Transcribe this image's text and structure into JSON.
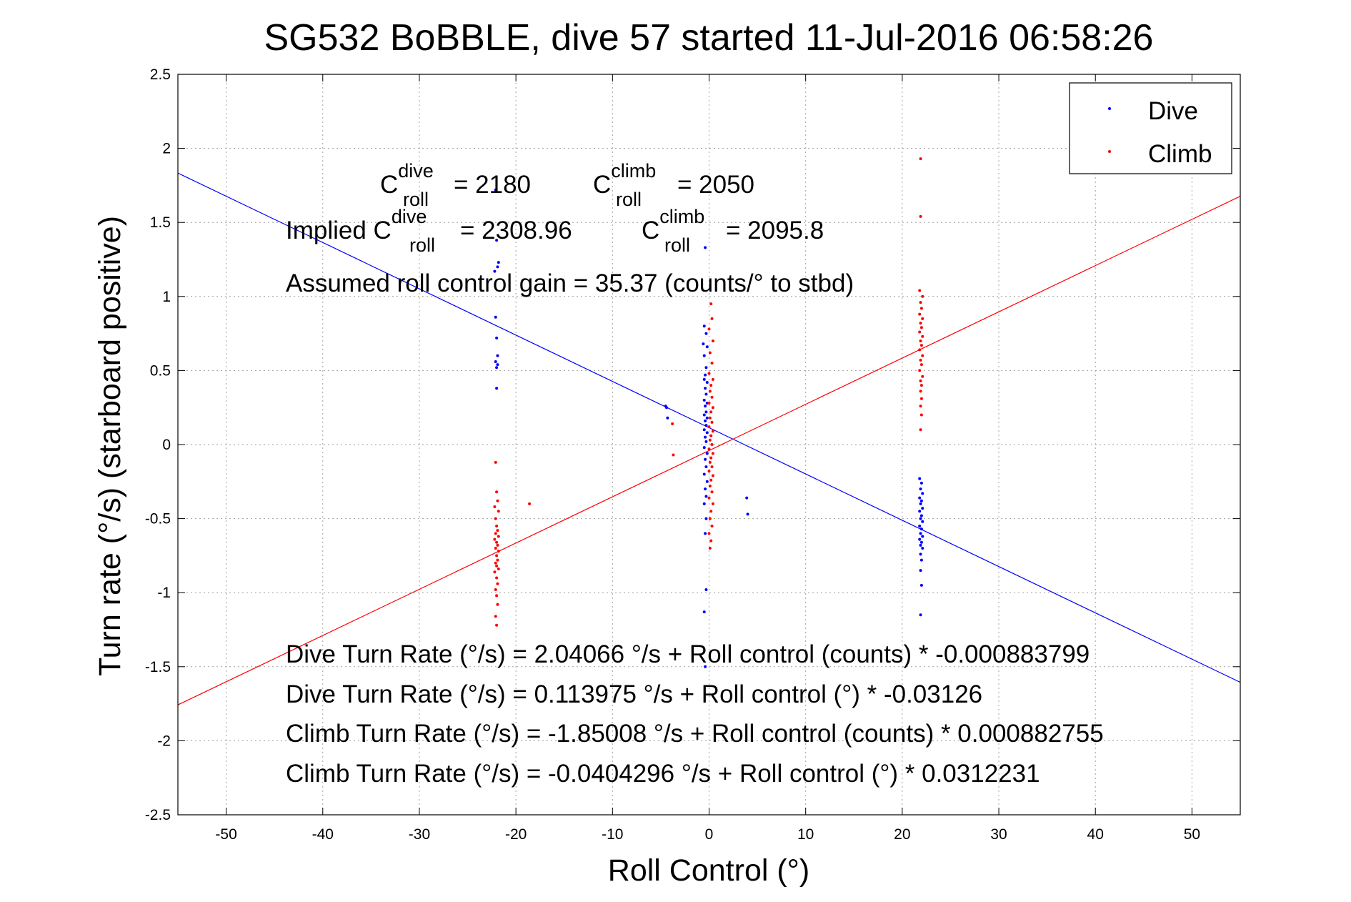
{
  "chart_data": {
    "type": "scatter",
    "title": "SG532 BoBBLE, dive 57 started 11-Jul-2016 06:58:26",
    "xlabel": "Roll Control (°)",
    "ylabel": "Turn rate (°/s)  (starboard positive)",
    "xlim": [
      -55,
      55
    ],
    "ylim": [
      -2.5,
      2.5
    ],
    "xticks": [
      -50,
      -40,
      -30,
      -20,
      -10,
      0,
      10,
      20,
      30,
      40,
      50
    ],
    "yticks": [
      -2.5,
      -2,
      -1.5,
      -1,
      -0.5,
      0,
      0.5,
      1,
      1.5,
      2,
      2.5
    ],
    "grid": true,
    "legend_position": "top-right",
    "colors": {
      "dive": "#0000ff",
      "climb": "#ff0000"
    },
    "series": [
      {
        "name": "Dive",
        "color": "#0000ff",
        "points": [
          [
            -22.1,
            1.72
          ],
          [
            -22.0,
            1.38
          ],
          [
            -21.9,
            1.2
          ],
          [
            -22.2,
            1.17
          ],
          [
            -21.8,
            1.23
          ],
          [
            -22.1,
            0.86
          ],
          [
            -22.0,
            0.72
          ],
          [
            -21.9,
            0.6
          ],
          [
            -22.1,
            0.56
          ],
          [
            -22.0,
            0.52
          ],
          [
            -21.9,
            0.54
          ],
          [
            -22.0,
            0.38
          ],
          [
            -4.5,
            0.26
          ],
          [
            -4.4,
            0.25
          ],
          [
            -4.3,
            0.18
          ],
          [
            -0.4,
            1.33
          ],
          [
            -0.5,
            0.8
          ],
          [
            -0.3,
            0.75
          ],
          [
            -0.6,
            0.68
          ],
          [
            -0.2,
            0.66
          ],
          [
            -0.5,
            0.6
          ],
          [
            -0.3,
            0.52
          ],
          [
            -0.4,
            0.47
          ],
          [
            -0.5,
            0.44
          ],
          [
            -0.2,
            0.42
          ],
          [
            -0.4,
            0.38
          ],
          [
            -0.3,
            0.34
          ],
          [
            -0.5,
            0.3
          ],
          [
            -0.2,
            0.28
          ],
          [
            -0.4,
            0.26
          ],
          [
            -0.3,
            0.22
          ],
          [
            -0.5,
            0.2
          ],
          [
            -0.2,
            0.18
          ],
          [
            -0.4,
            0.16
          ],
          [
            -0.3,
            0.13
          ],
          [
            -0.5,
            0.1
          ],
          [
            -0.2,
            0.08
          ],
          [
            -0.4,
            0.05
          ],
          [
            -0.3,
            0.02
          ],
          [
            -0.5,
            -0.02
          ],
          [
            -0.2,
            -0.06
          ],
          [
            -0.4,
            -0.1
          ],
          [
            -0.3,
            -0.15
          ],
          [
            -0.5,
            -0.2
          ],
          [
            -0.2,
            -0.25
          ],
          [
            -0.4,
            -0.3
          ],
          [
            -0.3,
            -0.35
          ],
          [
            -0.5,
            -0.4
          ],
          [
            -0.3,
            -0.5
          ],
          [
            -0.4,
            -0.6
          ],
          [
            -0.3,
            -0.98
          ],
          [
            -0.5,
            -1.13
          ],
          [
            -0.4,
            -1.5
          ],
          [
            3.9,
            -0.36
          ],
          [
            4.0,
            -0.47
          ],
          [
            21.8,
            -0.23
          ],
          [
            22.0,
            -0.26
          ],
          [
            21.9,
            -0.3
          ],
          [
            22.1,
            -0.33
          ],
          [
            21.8,
            -0.36
          ],
          [
            22.0,
            -0.38
          ],
          [
            21.9,
            -0.4
          ],
          [
            22.1,
            -0.43
          ],
          [
            21.8,
            -0.45
          ],
          [
            22.0,
            -0.48
          ],
          [
            21.9,
            -0.5
          ],
          [
            22.1,
            -0.52
          ],
          [
            21.8,
            -0.55
          ],
          [
            22.0,
            -0.57
          ],
          [
            21.9,
            -0.6
          ],
          [
            22.1,
            -0.62
          ],
          [
            21.8,
            -0.64
          ],
          [
            22.0,
            -0.66
          ],
          [
            21.9,
            -0.68
          ],
          [
            22.1,
            -0.7
          ],
          [
            21.9,
            -0.74
          ],
          [
            22.0,
            -0.78
          ],
          [
            21.9,
            -0.85
          ],
          [
            22.0,
            -0.95
          ],
          [
            21.9,
            -1.15
          ]
        ]
      },
      {
        "name": "Climb",
        "color": "#ff0000",
        "points": [
          [
            -22.1,
            -0.12
          ],
          [
            -22.0,
            -0.32
          ],
          [
            -21.9,
            -0.38
          ],
          [
            -22.2,
            -0.42
          ],
          [
            -21.8,
            -0.45
          ],
          [
            -22.1,
            -0.5
          ],
          [
            -22.0,
            -0.55
          ],
          [
            -21.9,
            -0.58
          ],
          [
            -22.1,
            -0.6
          ],
          [
            -21.8,
            -0.62
          ],
          [
            -22.2,
            -0.64
          ],
          [
            -22.0,
            -0.66
          ],
          [
            -21.9,
            -0.68
          ],
          [
            -22.1,
            -0.7
          ],
          [
            -21.8,
            -0.72
          ],
          [
            -22.0,
            -0.75
          ],
          [
            -21.9,
            -0.78
          ],
          [
            -22.1,
            -0.8
          ],
          [
            -22.0,
            -0.82
          ],
          [
            -21.8,
            -0.84
          ],
          [
            -22.2,
            -0.86
          ],
          [
            -22.0,
            -0.9
          ],
          [
            -21.9,
            -0.94
          ],
          [
            -22.1,
            -0.98
          ],
          [
            -22.0,
            -1.02
          ],
          [
            -21.9,
            -1.08
          ],
          [
            -22.1,
            -1.16
          ],
          [
            -22.0,
            -1.22
          ],
          [
            -18.6,
            -0.4
          ],
          [
            -3.8,
            0.14
          ],
          [
            -3.7,
            -0.07
          ],
          [
            0.2,
            0.95
          ],
          [
            0.3,
            0.85
          ],
          [
            0.0,
            0.78
          ],
          [
            0.4,
            0.7
          ],
          [
            0.1,
            0.62
          ],
          [
            0.3,
            0.55
          ],
          [
            0.0,
            0.48
          ],
          [
            0.4,
            0.44
          ],
          [
            0.2,
            0.4
          ],
          [
            0.1,
            0.36
          ],
          [
            0.3,
            0.32
          ],
          [
            0.0,
            0.28
          ],
          [
            0.4,
            0.25
          ],
          [
            0.2,
            0.22
          ],
          [
            0.1,
            0.18
          ],
          [
            0.3,
            0.15
          ],
          [
            0.0,
            0.12
          ],
          [
            0.4,
            0.09
          ],
          [
            0.2,
            0.06
          ],
          [
            0.1,
            0.03
          ],
          [
            0.3,
            0.0
          ],
          [
            0.0,
            -0.03
          ],
          [
            0.4,
            -0.06
          ],
          [
            0.2,
            -0.09
          ],
          [
            0.1,
            -0.12
          ],
          [
            0.3,
            -0.15
          ],
          [
            0.0,
            -0.18
          ],
          [
            0.4,
            -0.21
          ],
          [
            0.2,
            -0.24
          ],
          [
            0.1,
            -0.28
          ],
          [
            0.3,
            -0.32
          ],
          [
            0.0,
            -0.36
          ],
          [
            0.4,
            -0.4
          ],
          [
            0.2,
            -0.45
          ],
          [
            0.1,
            -0.5
          ],
          [
            0.3,
            -0.55
          ],
          [
            0.0,
            -0.6
          ],
          [
            0.2,
            -0.65
          ],
          [
            0.1,
            -0.7
          ],
          [
            21.9,
            1.93
          ],
          [
            21.9,
            1.54
          ],
          [
            21.8,
            1.04
          ],
          [
            22.1,
            1.0
          ],
          [
            21.9,
            0.96
          ],
          [
            22.0,
            0.92
          ],
          [
            21.8,
            0.88
          ],
          [
            22.1,
            0.85
          ],
          [
            21.9,
            0.82
          ],
          [
            22.0,
            0.79
          ],
          [
            21.8,
            0.76
          ],
          [
            22.1,
            0.73
          ],
          [
            21.9,
            0.7
          ],
          [
            22.0,
            0.67
          ],
          [
            21.8,
            0.64
          ],
          [
            22.1,
            0.6
          ],
          [
            21.9,
            0.57
          ],
          [
            22.0,
            0.54
          ],
          [
            21.8,
            0.5
          ],
          [
            22.1,
            0.46
          ],
          [
            21.9,
            0.43
          ],
          [
            22.0,
            0.4
          ],
          [
            21.9,
            0.36
          ],
          [
            22.0,
            0.31
          ],
          [
            21.9,
            0.26
          ],
          [
            22.0,
            0.2
          ],
          [
            21.9,
            0.1
          ]
        ]
      }
    ],
    "fit_lines": [
      {
        "series": "Dive",
        "color": "#0000ff",
        "intercept": 0.113975,
        "slope": -0.03126
      },
      {
        "series": "Climb",
        "color": "#ff0000",
        "intercept": -0.0404296,
        "slope": 0.0312231
      }
    ],
    "annotations": {
      "c_roll_dive": {
        "base": "C",
        "sup": "dive",
        "sub": "roll",
        "value": "= 2180"
      },
      "c_roll_climb": {
        "base": "C",
        "sup": "climb",
        "sub": "roll",
        "value": "= 2050"
      },
      "implied_prefix": "Implied C",
      "implied_dive": {
        "sup": "dive",
        "sub": "roll",
        "value": "= 2308.96"
      },
      "implied_climb": {
        "base": "C",
        "sup": "climb",
        "sub": "roll",
        "value": "= 2095.8"
      },
      "gain": "Assumed roll control gain = 35.37 (counts/° to stbd)",
      "equations": [
        "Dive Turn Rate (°/s) = 2.04066 °/s + Roll control (counts) * -0.000883799",
        "Dive Turn Rate (°/s) = 0.113975 °/s + Roll control (°) * -0.03126",
        "Climb Turn Rate (°/s) = -1.85008 °/s + Roll control (counts) * 0.000882755",
        "Climb Turn Rate (°/s) = -0.0404296 °/s + Roll control (°) * 0.0312231"
      ]
    }
  }
}
